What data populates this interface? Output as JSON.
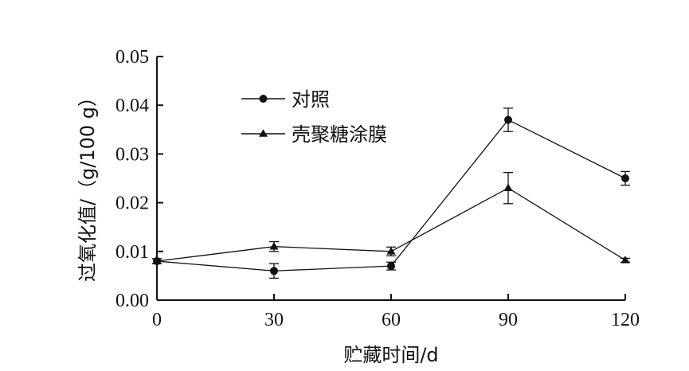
{
  "chart_data": {
    "type": "line",
    "xlabel": "贮藏时间/d",
    "ylabel": "过氧化值/（g/100 g）",
    "x": [
      0,
      30,
      60,
      90,
      120
    ],
    "xticks": [
      "0",
      "30",
      "60",
      "90",
      "120"
    ],
    "xlim": [
      0,
      120
    ],
    "ylim": [
      0,
      0.05
    ],
    "yticks": [
      "0.00",
      "0.01",
      "0.02",
      "0.03",
      "0.04",
      "0.05"
    ],
    "grid": false,
    "legend": "top-left",
    "series": [
      {
        "name": "对照",
        "marker": "circle",
        "values": [
          0.008,
          0.006,
          0.007,
          0.037,
          0.025
        ],
        "errors": [
          0.0005,
          0.0015,
          0.0008,
          0.0024,
          0.0014
        ]
      },
      {
        "name": "壳聚糖涂膜",
        "marker": "triangle",
        "values": [
          0.008,
          0.011,
          0.01,
          0.023,
          0.0082
        ],
        "errors": [
          0.0005,
          0.001,
          0.0009,
          0.0032,
          0.0004
        ]
      }
    ]
  }
}
